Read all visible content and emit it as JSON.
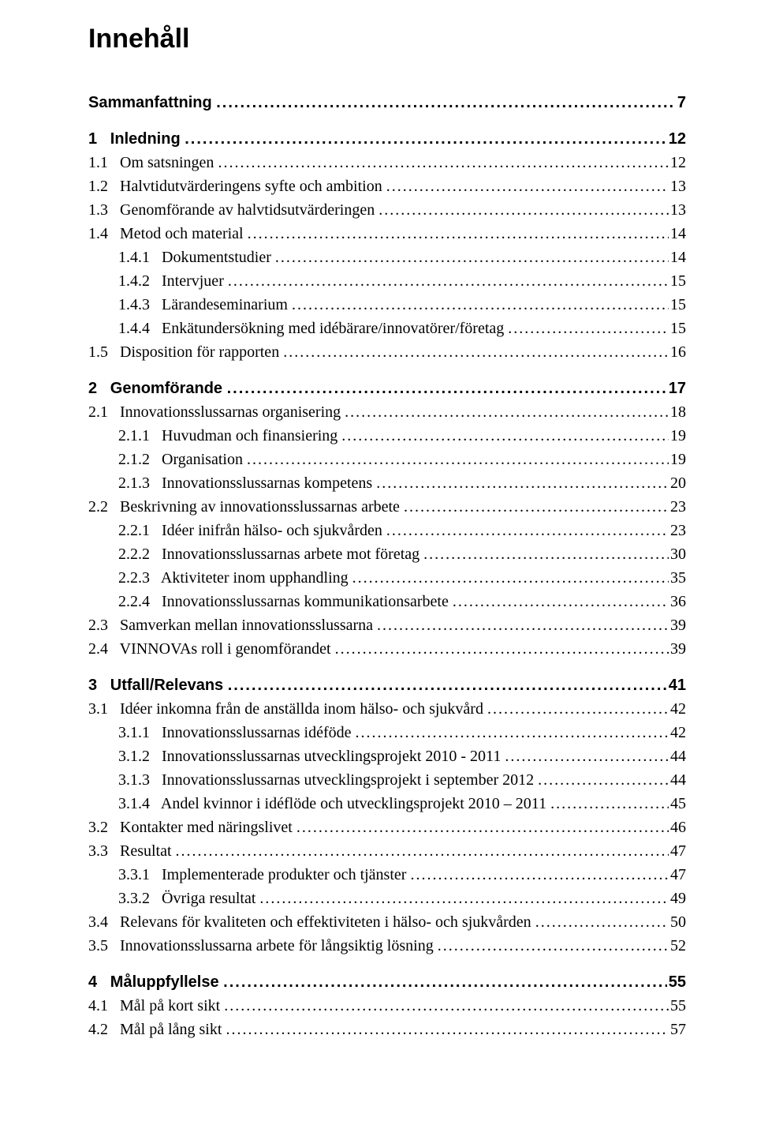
{
  "title": "Innehåll",
  "leader_char": ".",
  "font": {
    "heading_family": "Arial, Helvetica, sans-serif",
    "body_family": "\"Times New Roman\", Times, serif",
    "heading_size_pt": 26,
    "entry_size_pt": 15,
    "section_size_pt": 15
  },
  "colors": {
    "text": "#000000",
    "background": "#ffffff"
  },
  "toc": [
    {
      "level": 0,
      "label": "Sammanfattning",
      "page": "7"
    },
    {
      "level": 0,
      "label": "1",
      "title": "Inledning",
      "page": "12"
    },
    {
      "level": 1,
      "label": "1.1",
      "title": "Om satsningen",
      "page": "12"
    },
    {
      "level": 1,
      "label": "1.2",
      "title": "Halvtidutvärderingens syfte och ambition",
      "page": "13"
    },
    {
      "level": 1,
      "label": "1.3",
      "title": "Genomförande av halvtidsutvärderingen",
      "page": "13"
    },
    {
      "level": 1,
      "label": "1.4",
      "title": "Metod och material",
      "page": "14"
    },
    {
      "level": 2,
      "label": "1.4.1",
      "title": "Dokumentstudier",
      "page": "14"
    },
    {
      "level": 2,
      "label": "1.4.2",
      "title": "Intervjuer",
      "page": "15"
    },
    {
      "level": 2,
      "label": "1.4.3",
      "title": "Lärandeseminarium",
      "page": "15"
    },
    {
      "level": 2,
      "label": "1.4.4",
      "title": "Enkätundersökning med idébärare/innovatörer/företag",
      "page": "15"
    },
    {
      "level": 1,
      "label": "1.5",
      "title": "Disposition för rapporten",
      "page": "16"
    },
    {
      "level": 0,
      "label": "2",
      "title": "Genomförande",
      "page": "17"
    },
    {
      "level": 1,
      "label": "2.1",
      "title": "Innovationsslussarnas organisering",
      "page": "18"
    },
    {
      "level": 2,
      "label": "2.1.1",
      "title": "Huvudman och finansiering",
      "page": "19"
    },
    {
      "level": 2,
      "label": "2.1.2",
      "title": "Organisation",
      "page": "19"
    },
    {
      "level": 2,
      "label": "2.1.3",
      "title": "Innovationsslussarnas kompetens",
      "page": "20"
    },
    {
      "level": 1,
      "label": "2.2",
      "title": "Beskrivning av innovationsslussarnas arbete",
      "page": "23"
    },
    {
      "level": 2,
      "label": "2.2.1",
      "title": "Idéer inifrån hälso- och sjukvården",
      "page": "23"
    },
    {
      "level": 2,
      "label": "2.2.2",
      "title": "Innovationsslussarnas arbete mot företag",
      "page": "30"
    },
    {
      "level": 2,
      "label": "2.2.3",
      "title": "Aktiviteter inom upphandling",
      "page": "35"
    },
    {
      "level": 2,
      "label": "2.2.4",
      "title": "Innovationsslussarnas kommunikationsarbete",
      "page": "36"
    },
    {
      "level": 1,
      "label": "2.3",
      "title": "Samverkan mellan innovationsslussarna",
      "page": "39"
    },
    {
      "level": 1,
      "label": "2.4",
      "title": "VINNOVAs roll i genomförandet",
      "page": "39"
    },
    {
      "level": 0,
      "label": "3",
      "title": "Utfall/Relevans",
      "page": "41"
    },
    {
      "level": 1,
      "label": "3.1",
      "title": "Idéer inkomna från de anställda inom hälso- och sjukvård",
      "page": "42"
    },
    {
      "level": 2,
      "label": "3.1.1",
      "title": "Innovationsslussarnas idéföde",
      "page": "42"
    },
    {
      "level": 2,
      "label": "3.1.2",
      "title": "Innovationsslussarnas utvecklingsprojekt 2010 - 2011",
      "page": "44"
    },
    {
      "level": 2,
      "label": "3.1.3",
      "title": "Innovationsslussarnas utvecklingsprojekt i september 2012",
      "page": "44"
    },
    {
      "level": 2,
      "label": "3.1.4",
      "title": "Andel kvinnor i idéflöde och utvecklingsprojekt 2010 – 2011",
      "page": "45"
    },
    {
      "level": 1,
      "label": "3.2",
      "title": "Kontakter med näringslivet",
      "page": "46"
    },
    {
      "level": 1,
      "label": "3.3",
      "title": "Resultat",
      "page": "47"
    },
    {
      "level": 2,
      "label": "3.3.1",
      "title": "Implementerade produkter och tjänster",
      "page": "47"
    },
    {
      "level": 2,
      "label": "3.3.2",
      "title": "Övriga resultat",
      "page": "49"
    },
    {
      "level": 1,
      "label": "3.4",
      "title": "Relevans för kvaliteten och effektiviteten i hälso- och sjukvården",
      "page": "50"
    },
    {
      "level": 1,
      "label": "3.5",
      "title": "Innovationsslussarna arbete för långsiktig lösning",
      "page": "52"
    },
    {
      "level": 0,
      "label": "4",
      "title": "Måluppfyllelse",
      "page": "55"
    },
    {
      "level": 1,
      "label": "4.1",
      "title": "Mål på kort sikt",
      "page": "55"
    },
    {
      "level": 1,
      "label": "4.2",
      "title": "Mål på lång sikt",
      "page": "57"
    }
  ]
}
